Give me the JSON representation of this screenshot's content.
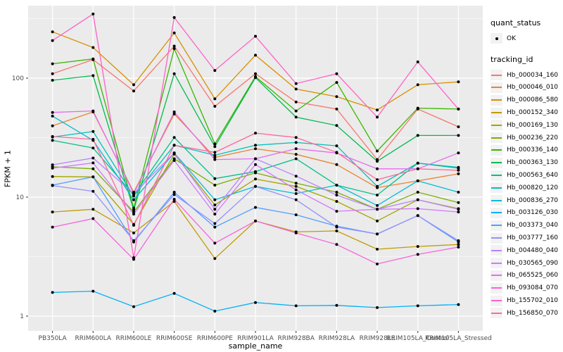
{
  "figure": {
    "x_axis_title": "sample_name",
    "y_axis_title": "FPKM + 1"
  },
  "legend": {
    "quant_status": {
      "title": "quant_status",
      "items": [
        {
          "label": "OK",
          "symbol": "point"
        }
      ]
    },
    "tracking_id": {
      "title": "tracking_id",
      "items": [
        {
          "label": "Hb_000034_160",
          "color": "#F8766D"
        },
        {
          "label": "Hb_000046_010",
          "color": "#EA8331"
        },
        {
          "label": "Hb_000086_580",
          "color": "#D89000"
        },
        {
          "label": "Hb_000152_340",
          "color": "#C09B00"
        },
        {
          "label": "Hb_000169_130",
          "color": "#A3A500"
        },
        {
          "label": "Hb_000236_220",
          "color": "#7CAE00"
        },
        {
          "label": "Hb_000336_140",
          "color": "#39B600"
        },
        {
          "label": "Hb_000363_130",
          "color": "#00BB4E"
        },
        {
          "label": "Hb_000563_640",
          "color": "#00C087"
        },
        {
          "label": "Hb_000820_120",
          "color": "#00C0B8"
        },
        {
          "label": "Hb_000836_270",
          "color": "#00BCD8"
        },
        {
          "label": "Hb_003126_030",
          "color": "#00B0F6"
        },
        {
          "label": "Hb_003373_040",
          "color": "#529EFF"
        },
        {
          "label": "Hb_003777_160",
          "color": "#9590FF"
        },
        {
          "label": "Hb_004480_040",
          "color": "#B983FF"
        },
        {
          "label": "Hb_030565_090",
          "color": "#D376FF"
        },
        {
          "label": "Hb_065525_060",
          "color": "#E76BF3"
        },
        {
          "label": "Hb_093084_070",
          "color": "#F862DF"
        },
        {
          "label": "Hb_155702_010",
          "color": "#FF61C7"
        },
        {
          "label": "Hb_156850_070",
          "color": "#FF689E"
        }
      ]
    }
  },
  "chart_data": {
    "type": "line",
    "title": "",
    "xlabel": "sample_name",
    "ylabel": "FPKM + 1",
    "y_scale": "log10",
    "y_ticks": [
      1,
      10,
      100
    ],
    "y_minor_ticks": [
      3.162,
      31.62,
      316.2
    ],
    "grid": "on",
    "legend_position": "right",
    "panel_bg": "#EBEBEB",
    "grid_color": "#FFFFFF",
    "point_color": "#000000",
    "tick_label_color": "#4D4D4D",
    "categories": [
      "PB350LA",
      "RRIM600LA",
      "RRIM600LE",
      "RRIM600SE",
      "RRIM600PE",
      "RRIM901LA",
      "RRIM928BA",
      "RRIM928LA",
      "RRIM928LE",
      "RRIM105LA_Control",
      "RRIM105LA_Stressed"
    ],
    "series": [
      {
        "name": "Hb_000034_160",
        "color": "#F8766D",
        "values": [
          109,
          143,
          78,
          186,
          58,
          109,
          63,
          55,
          20.7,
          55,
          39
        ]
      },
      {
        "name": "Hb_000046_010",
        "color": "#EA8331",
        "values": [
          39.7,
          52,
          11,
          50,
          21.6,
          25.5,
          22.9,
          18.8,
          12,
          13.7,
          15.7
        ]
      },
      {
        "name": "Hb_000086_580",
        "color": "#D89000",
        "values": [
          245,
          181,
          88,
          240,
          67,
          156,
          81,
          70,
          54,
          88,
          93
        ]
      },
      {
        "name": "Hb_000152_340",
        "color": "#C09B00",
        "values": [
          7.5,
          7.9,
          5.0,
          9.2,
          3.05,
          6.3,
          5.1,
          5.2,
          3.65,
          3.85,
          4.0
        ]
      },
      {
        "name": "Hb_000169_130",
        "color": "#A3A500",
        "values": [
          14.9,
          14.8,
          5.9,
          23,
          8.6,
          14.2,
          12.3,
          9.2,
          6.3,
          9.5,
          8.0
        ]
      },
      {
        "name": "Hb_000236_220",
        "color": "#7CAE00",
        "values": [
          18,
          17.3,
          7.5,
          21,
          12.6,
          16,
          13.1,
          11,
          7.9,
          11,
          9
        ]
      },
      {
        "name": "Hb_000336_140",
        "color": "#39B600",
        "values": [
          132,
          145,
          8.1,
          177,
          28,
          103,
          53,
          92,
          24.4,
          56,
          55
        ]
      },
      {
        "name": "Hb_000363_130",
        "color": "#00BB4E",
        "values": [
          96,
          105,
          7.8,
          109,
          26.6,
          101,
          47,
          40,
          20,
          33,
          33
        ]
      },
      {
        "name": "Hb_000563_640",
        "color": "#00C087",
        "values": [
          30,
          25.9,
          10.4,
          31.7,
          14.3,
          16.4,
          21,
          12.6,
          10.4,
          19.3,
          17.5
        ]
      },
      {
        "name": "Hb_000820_120",
        "color": "#00C0B8",
        "values": [
          32,
          35.6,
          10.2,
          27.3,
          22.5,
          27.3,
          28.8,
          27,
          12.3,
          19.3,
          17.8
        ]
      },
      {
        "name": "Hb_000836_270",
        "color": "#00BCD8",
        "values": [
          48,
          30,
          9.5,
          23.5,
          9.5,
          12.3,
          10.7,
          12.6,
          8.5,
          13.7,
          11
        ]
      },
      {
        "name": "Hb_003126_030",
        "color": "#00B0F6",
        "values": [
          1.58,
          1.62,
          1.2,
          1.55,
          1.1,
          1.3,
          1.22,
          1.23,
          1.18,
          1.22,
          1.25
        ]
      },
      {
        "name": "Hb_003373_040",
        "color": "#529EFF",
        "values": [
          12.6,
          14.8,
          4.2,
          11,
          5.6,
          8.2,
          7.1,
          5.7,
          4.9,
          7.0,
          4.2
        ]
      },
      {
        "name": "Hb_003777_160",
        "color": "#9590FF",
        "values": [
          12.5,
          11.2,
          4.3,
          10.5,
          6.0,
          12.3,
          9.5,
          5.6,
          4.9,
          7.0,
          4.3
        ]
      },
      {
        "name": "Hb_004480_040",
        "color": "#B983FF",
        "values": [
          18.7,
          21.3,
          10.7,
          23.5,
          7.9,
          21,
          15,
          10.4,
          7.9,
          9.5,
          7.9
        ]
      },
      {
        "name": "Hb_030565_090",
        "color": "#D376FF",
        "values": [
          17.5,
          19.4,
          7.2,
          20.3,
          7.2,
          18.8,
          11.5,
          7.6,
          7.9,
          8.0,
          7.5
        ]
      },
      {
        "name": "Hb_065525_060",
        "color": "#E76BF3",
        "values": [
          51.5,
          53,
          10.7,
          52,
          20.7,
          21,
          25.5,
          23.5,
          17.3,
          17.3,
          23.5
        ]
      },
      {
        "name": "Hb_093084_070",
        "color": "#F862DF",
        "values": [
          5.6,
          6.6,
          3.0,
          9.6,
          4.1,
          6.3,
          5.0,
          4.0,
          2.74,
          3.3,
          3.8
        ]
      },
      {
        "name": "Hb_155702_010",
        "color": "#FF61C7",
        "values": [
          207,
          346,
          3.1,
          323,
          116,
          225,
          90,
          109,
          47,
          137,
          55
        ]
      },
      {
        "name": "Hb_156850_070",
        "color": "#FF689E",
        "values": [
          32.3,
          30.6,
          5.8,
          27.3,
          23.8,
          34.5,
          31.7,
          23.8,
          14,
          17.3,
          16.8
        ]
      }
    ]
  }
}
